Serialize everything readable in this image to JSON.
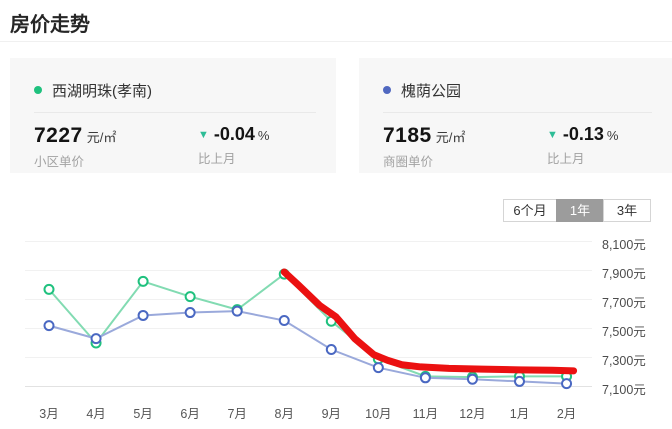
{
  "page": {
    "title": "房价走势"
  },
  "cards": [
    {
      "name": "西湖明珠(孝南)",
      "dot_color": "#1fc17e",
      "price": "7227",
      "unit": "元/㎡",
      "price_label": "小区单价",
      "trend_icon": "▼",
      "trend_color": "#2dbd96",
      "change": "-0.04",
      "change_suffix": "%",
      "change_label": "比上月"
    },
    {
      "name": "槐荫公园",
      "dot_color": "#5068c0",
      "price": "7185",
      "unit": "元/㎡",
      "price_label": "商圈单价",
      "trend_icon": "▼",
      "trend_color": "#2dbd96",
      "change": "-0.13",
      "change_suffix": "%",
      "change_label": "比上月"
    }
  ],
  "range_tabs": [
    {
      "label": "6个月",
      "selected": false
    },
    {
      "label": "1年",
      "selected": true
    },
    {
      "label": "3年",
      "selected": false
    }
  ],
  "chart_data": {
    "type": "line",
    "title": "房价走势 12个月",
    "categories": [
      "3月",
      "4月",
      "5月",
      "6月",
      "7月",
      "8月",
      "9月",
      "10月",
      "11月",
      "12月",
      "1月",
      "2月"
    ],
    "series": [
      {
        "name": "西湖明珠(孝南)",
        "line_color": "#82dbb2",
        "marker_color": "#1fc17e",
        "values": [
          7770,
          7400,
          7825,
          7720,
          7630,
          7875,
          7550,
          7290,
          7170,
          7165,
          7170,
          7170
        ]
      },
      {
        "name": "槐荫公园",
        "line_color": "#9aa9db",
        "marker_color": "#4a68c2",
        "values": [
          7520,
          7430,
          7590,
          7610,
          7620,
          7555,
          7355,
          7230,
          7160,
          7150,
          7135,
          7120
        ]
      }
    ],
    "annotation": {
      "kind": "hand-drawn-highlight-line",
      "color": "#eb1111",
      "points": [
        [
          5.0,
          7890
        ],
        [
          5.3,
          7800
        ],
        [
          5.75,
          7660
        ],
        [
          6.1,
          7580
        ],
        [
          6.5,
          7430
        ],
        [
          6.9,
          7320
        ],
        [
          7.2,
          7280
        ],
        [
          7.5,
          7250
        ],
        [
          7.9,
          7235
        ],
        [
          8.5,
          7225
        ],
        [
          9.2,
          7220
        ],
        [
          10.0,
          7215
        ],
        [
          10.7,
          7212
        ],
        [
          11.15,
          7208
        ]
      ]
    },
    "y_axis": {
      "side": "right",
      "ticks": [
        {
          "value": 8100,
          "label": "8,100元"
        },
        {
          "value": 7900,
          "label": "7,900元"
        },
        {
          "value": 7700,
          "label": "7,700元"
        },
        {
          "value": 7500,
          "label": "7,500元"
        },
        {
          "value": 7300,
          "label": "7,300元"
        },
        {
          "value": 7100,
          "label": "7,100元"
        }
      ]
    },
    "ylim": [
      7090,
      8190
    ],
    "grid": true,
    "legend_position": "cards-top"
  }
}
